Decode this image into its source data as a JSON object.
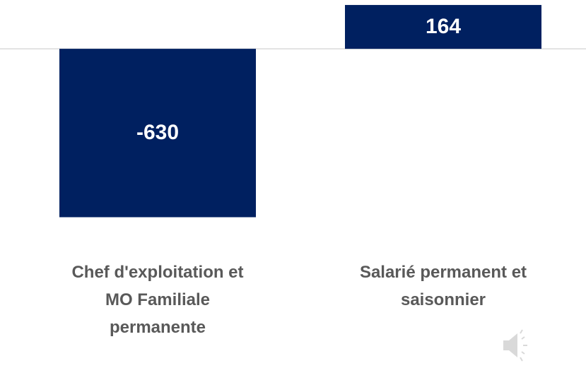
{
  "chart_data": {
    "type": "bar",
    "categories": [
      "Chef d'exploitation et MO Familiale permanente",
      "Salarié permanent et saisonnier"
    ],
    "values": [
      -630,
      164
    ],
    "color": "#002060",
    "ylim": [
      -700,
      180
    ]
  }
}
